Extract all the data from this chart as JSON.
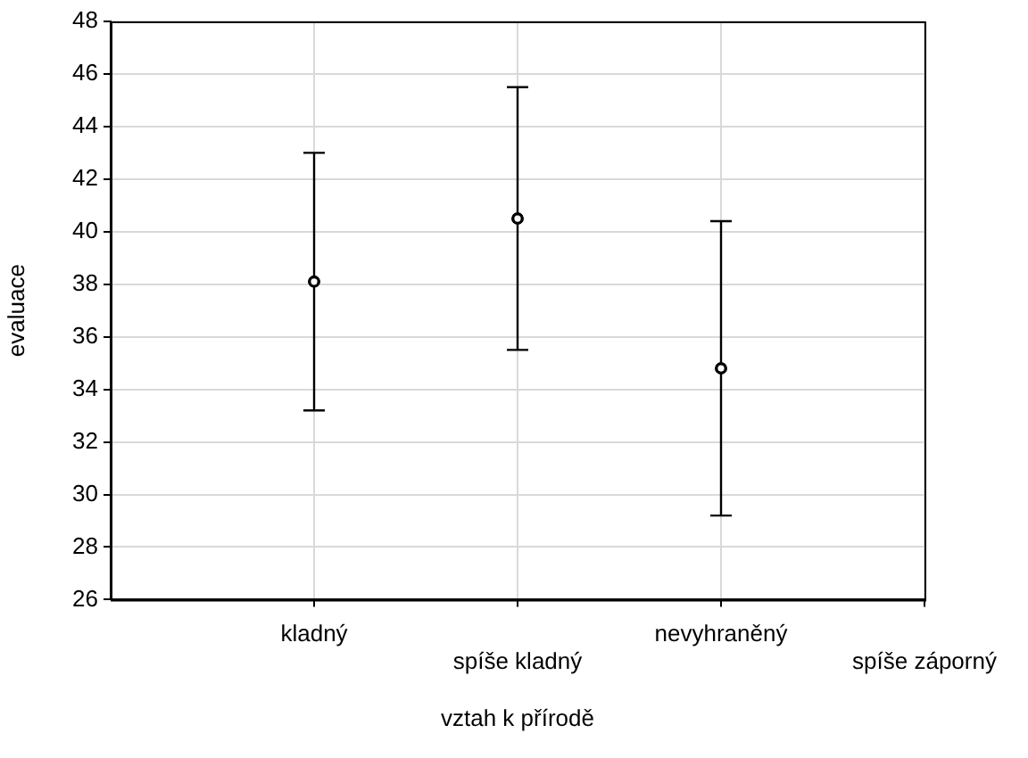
{
  "chart_data": {
    "type": "scatter",
    "xlabel": "vztah k přírodě",
    "ylabel": "evaluace",
    "categories": [
      "kladný",
      "spíše kladný",
      "nevyhraněný",
      "spíše záporný"
    ],
    "values": [
      38.1,
      40.5,
      34.8,
      null
    ],
    "errors": [
      4.9,
      5.0,
      5.6,
      null
    ],
    "color": "#000000",
    "marker": "circle",
    "grid": true,
    "ylim": [
      26,
      48
    ],
    "yticks": [
      26,
      28,
      30,
      32,
      34,
      36,
      38,
      40,
      42,
      44,
      46,
      48
    ]
  }
}
